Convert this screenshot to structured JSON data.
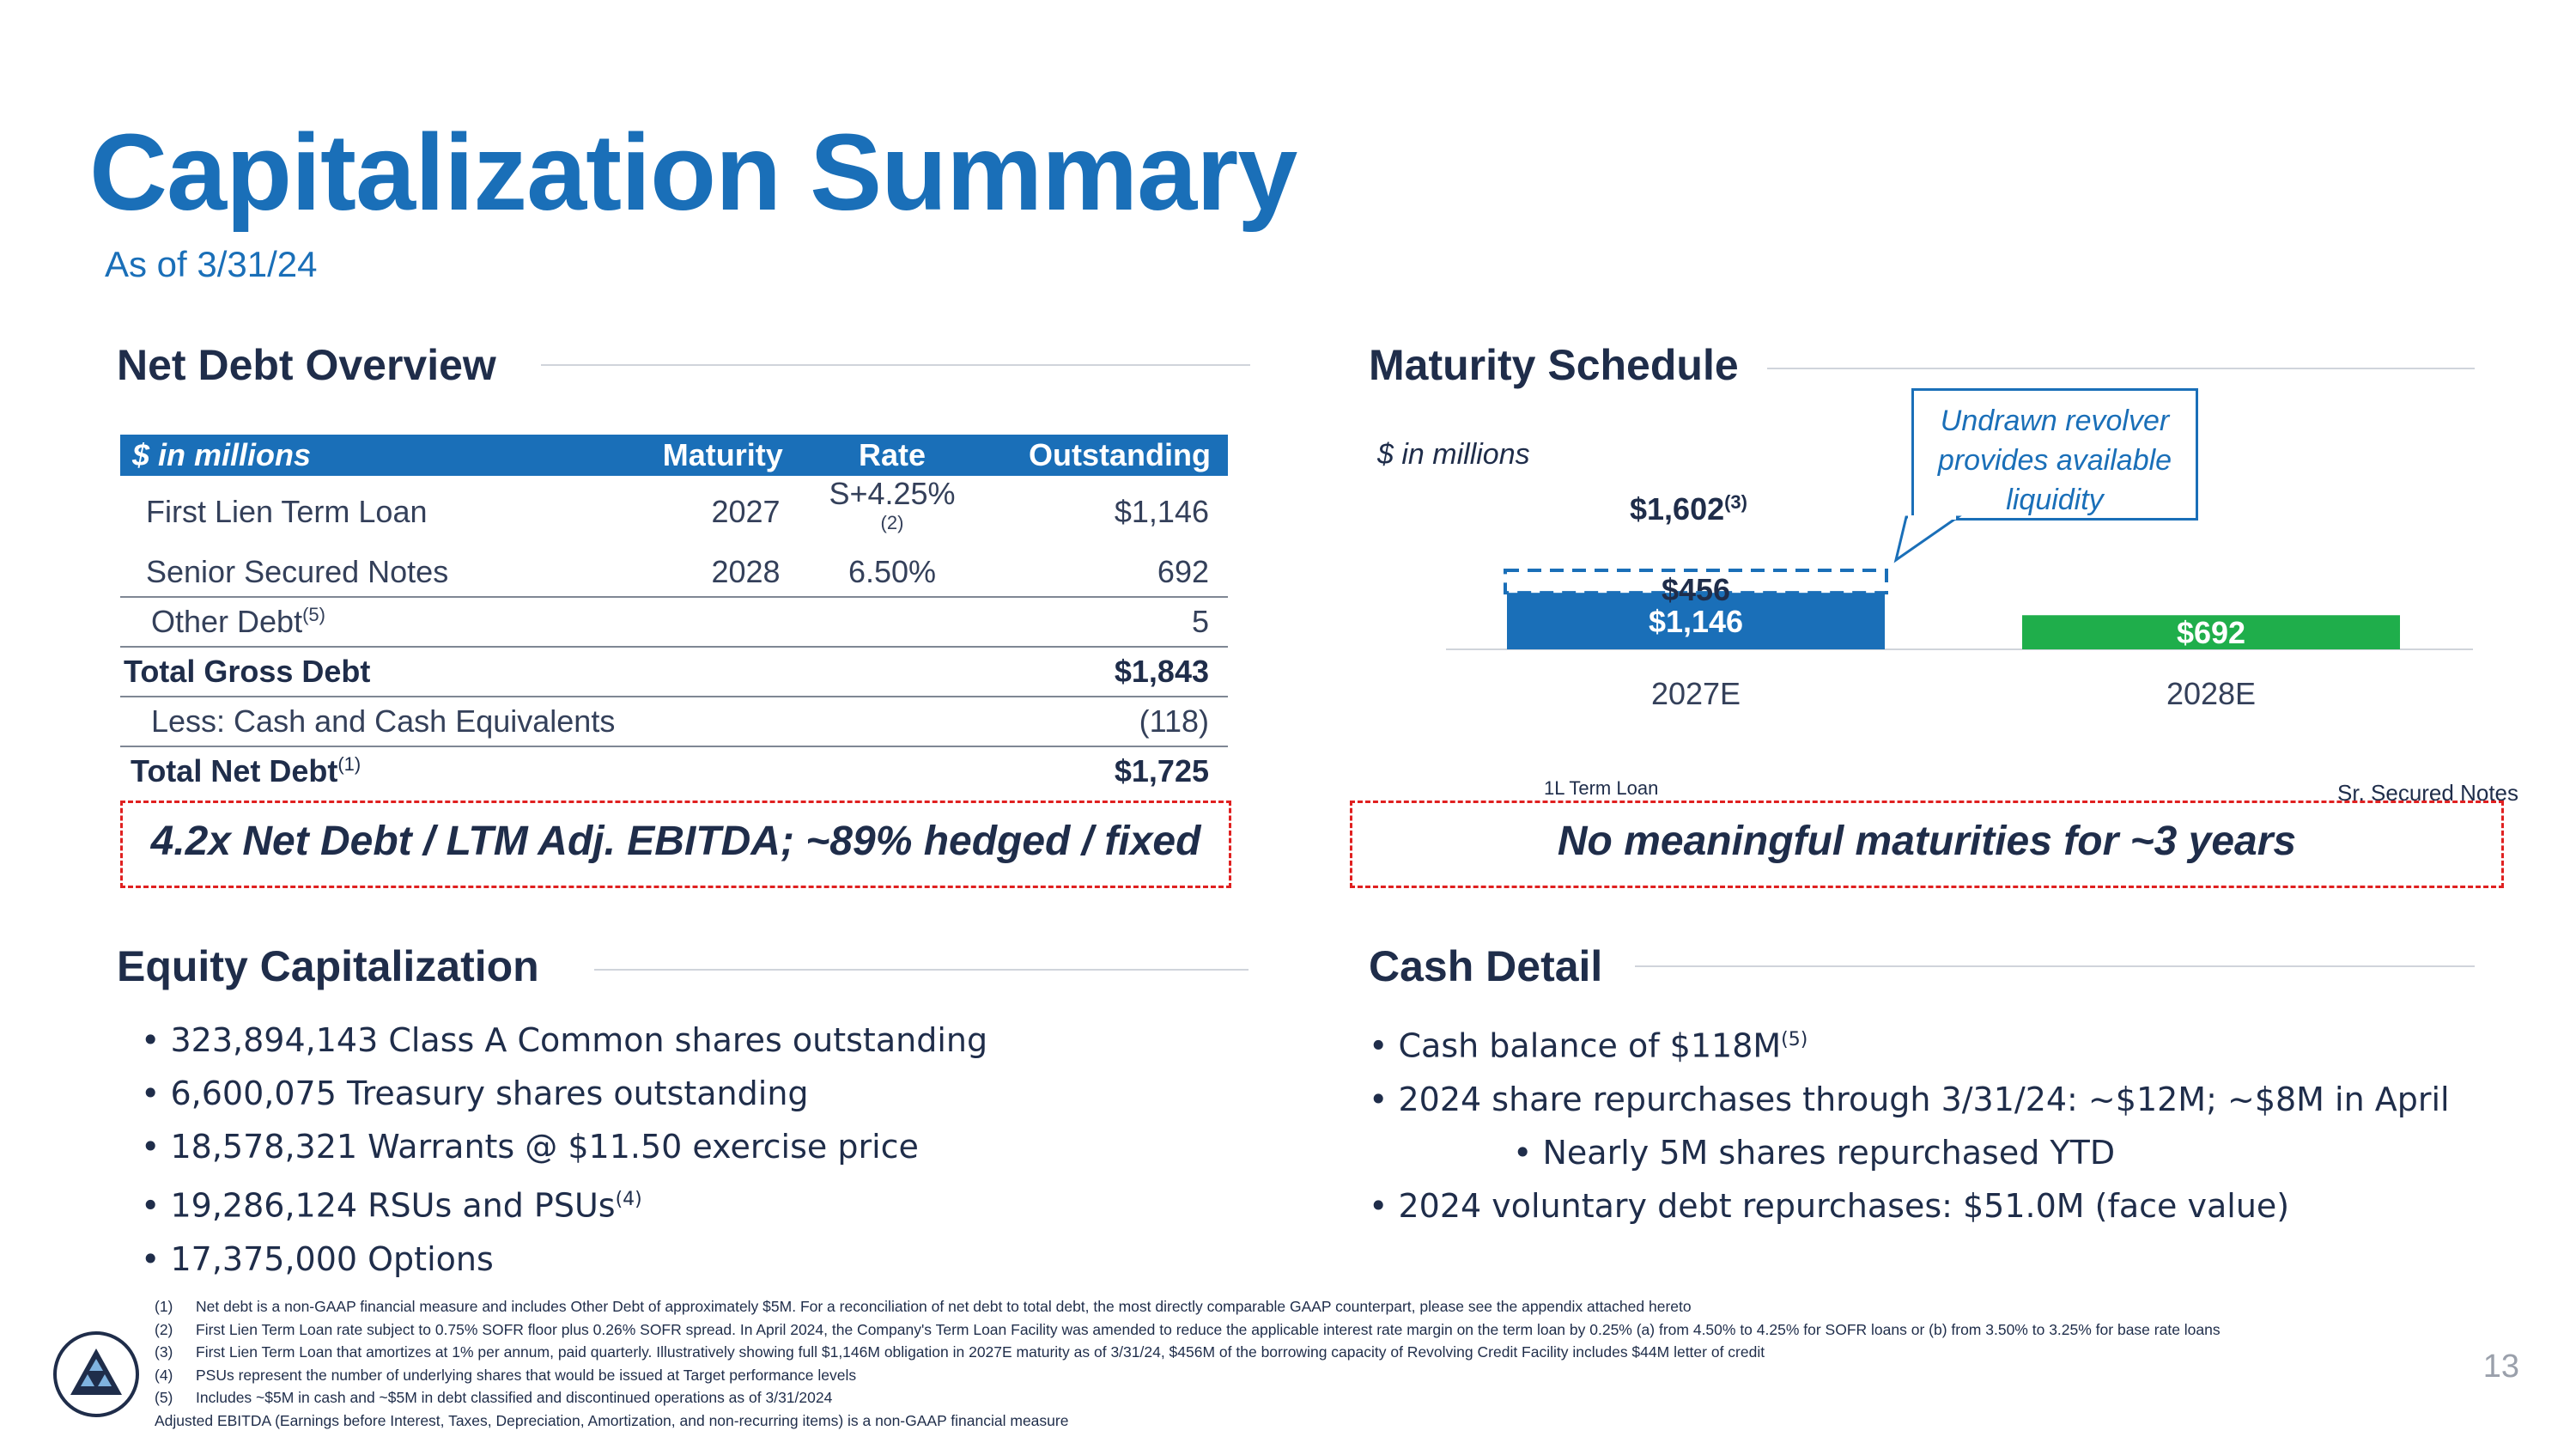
{
  "header": {
    "title": "Capitalization Summary",
    "subtitle": "As of 3/31/24"
  },
  "net_debt": {
    "heading": "Net Debt Overview",
    "columns": [
      "$ in millions",
      "Maturity",
      "Rate",
      "Outstanding"
    ],
    "rows": [
      {
        "label": "First Lien Term Loan",
        "maturity": "2027",
        "rate": "S+4.25%",
        "rate_note": "(2)",
        "outstanding": "$1,146"
      },
      {
        "label": "Senior Secured Notes",
        "maturity": "2028",
        "rate": "6.50%",
        "outstanding": "692"
      },
      {
        "label": "Other Debt",
        "label_note": "(5)",
        "outstanding": "5"
      },
      {
        "label": "Total Gross Debt",
        "outstanding": "$1,843"
      },
      {
        "label": "Less: Cash and Cash Equivalents",
        "outstanding": "(118)"
      },
      {
        "label": "Total Net Debt",
        "label_note": "(1)",
        "outstanding": "$1,725"
      }
    ],
    "callout": "4.2x Net Debt / LTM Adj. EBITDA; ~89% hedged / fixed"
  },
  "maturity": {
    "heading": "Maturity Schedule",
    "units": "$ in millions",
    "tooltip": "Undrawn revolver provides available liquidity",
    "total_label": "$1,602",
    "total_note": "(3)",
    "legend_left": "1L Term Loan",
    "legend_right": "Sr. Secured Notes",
    "callout": "No meaningful maturities for ~3 years",
    "colors": {
      "term_loan": "#1a6fb8",
      "notes": "#1fae4b",
      "revolver_dash": "#1a6fb8"
    },
    "chart_data": {
      "type": "bar",
      "categories": [
        "2027E",
        "2028E"
      ],
      "series": [
        {
          "name": "1L Term Loan",
          "values": [
            1146,
            0
          ],
          "labels": [
            "$1,146",
            ""
          ]
        },
        {
          "name": "Revolver (undrawn)",
          "values": [
            456,
            0
          ],
          "labels": [
            "$456",
            ""
          ]
        },
        {
          "name": "Sr. Secured Notes",
          "values": [
            0,
            692
          ],
          "labels": [
            "",
            "$692"
          ]
        }
      ],
      "ylim": [
        0,
        1602
      ]
    }
  },
  "equity": {
    "heading": "Equity Capitalization",
    "items": [
      {
        "text": "323,894,143 Class A Common shares outstanding"
      },
      {
        "text": "6,600,075 Treasury shares outstanding"
      },
      {
        "text": "18,578,321 Warrants @ $11.50 exercise price"
      },
      {
        "text": "19,286,124 RSUs and PSUs",
        "note": "(4)"
      },
      {
        "text": "17,375,000 Options"
      }
    ]
  },
  "cash": {
    "heading": "Cash Detail",
    "items": [
      {
        "text": "Cash balance of $118M",
        "note": "(5)"
      },
      {
        "text": "2024 share repurchases through 3/31/24: ~$12M; ~$8M in April"
      },
      {
        "text": "Nearly 5M shares repurchased YTD"
      },
      {
        "text": "2024 voluntary debt repurchases: $51.0M (face value)"
      }
    ]
  },
  "footnotes": [
    {
      "num": "(1)",
      "text": "Net debt is a non-GAAP financial measure and includes Other Debt of approximately $5M. For a reconciliation of net debt to total debt, the most directly comparable GAAP counterpart, please see the appendix attached hereto"
    },
    {
      "num": "(2)",
      "text": "First Lien Term Loan rate subject to 0.75% SOFR floor plus 0.26% SOFR spread. In April 2024, the Company's Term Loan Facility was amended to reduce the applicable interest rate margin on the term loan by 0.25% (a) from 4.50% to 4.25% for SOFR loans or (b) from 3.50% to 3.25% for base rate loans"
    },
    {
      "num": "(3)",
      "text": "First Lien Term Loan that amortizes at 1% per annum, paid quarterly. Illustratively showing full $1,146M obligation in 2027E maturity as of 3/31/24, $456M of the borrowing capacity of Revolving Credit Facility includes $44M letter of credit"
    },
    {
      "num": "(4)",
      "text": "PSUs represent the number of underlying shares that would be issued at Target performance levels"
    },
    {
      "num": "(5)",
      "text": "Includes ~$5M in cash and ~$5M in debt classified and discontinued operations as of 3/31/2024"
    }
  ],
  "footer_note": "Adjusted EBITDA (Earnings before Interest, Taxes, Depreciation, Amortization, and non-recurring items) is a non-GAAP financial measure",
  "page_number": "13"
}
